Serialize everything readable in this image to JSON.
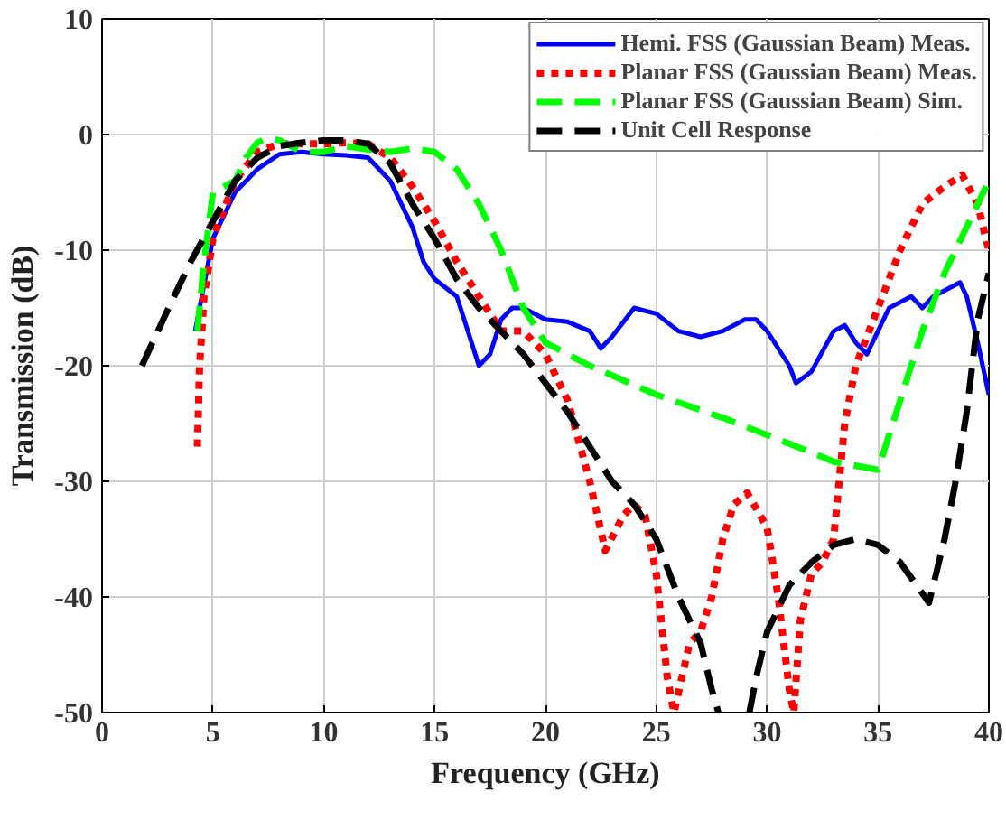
{
  "chart_data": {
    "type": "line",
    "xlabel": "Frequency (GHz)",
    "ylabel": "Transmission (dB)",
    "xlim": [
      0,
      40
    ],
    "ylim": [
      -50,
      10
    ],
    "xticks": [
      0,
      5,
      10,
      15,
      20,
      25,
      30,
      35,
      40
    ],
    "yticks": [
      -50,
      -40,
      -30,
      -20,
      -10,
      0,
      10
    ],
    "grid": true,
    "legend": "top right",
    "series": [
      {
        "name": "Hemi. FSS (Gaussian Beam) Meas.",
        "color": "#0000ff",
        "line_style": "solid",
        "x": [
          4.2,
          5,
          6,
          7,
          8,
          9,
          10,
          11,
          12,
          13,
          14,
          14.5,
          15,
          16,
          16.5,
          17,
          17.5,
          18,
          18.5,
          19,
          20,
          21,
          22,
          22.5,
          23,
          24,
          25,
          26,
          27,
          28,
          29,
          29.5,
          30,
          31,
          31.3,
          32,
          33,
          33.5,
          34,
          34.5,
          35,
          35.5,
          36,
          36.5,
          37,
          37.5,
          38,
          38.7,
          39,
          39.5,
          40
        ],
        "values": [
          -17,
          -9,
          -5,
          -3,
          -1.7,
          -1.5,
          -1.7,
          -1.8,
          -2,
          -4,
          -8,
          -11,
          -12.5,
          -14,
          -17,
          -20,
          -19,
          -16,
          -15,
          -15,
          -16,
          -16.2,
          -17,
          -18.5,
          -17.5,
          -15,
          -15.5,
          -17,
          -17.5,
          -17,
          -16,
          -16,
          -17,
          -20,
          -21.5,
          -20.5,
          -17,
          -16.5,
          -18,
          -19,
          -17,
          -15,
          -14.5,
          -14,
          -15,
          -14,
          -13.5,
          -12.8,
          -14,
          -18,
          -22.5
        ]
      },
      {
        "name": "Planar FSS (Gaussian Beam) Meas.",
        "color": "#ff0000",
        "line_style": "dotted",
        "x": [
          4.3,
          4.4,
          4.6,
          5,
          6,
          7,
          8,
          9,
          10,
          11,
          12,
          13,
          14,
          15,
          16,
          17,
          18,
          19,
          20,
          21,
          22,
          22.7,
          23.5,
          24,
          24.5,
          25,
          25.5,
          25.8,
          26.5,
          27,
          27.5,
          28,
          28.5,
          29.1,
          30,
          30.5,
          31,
          31.2,
          31.5,
          32,
          32.5,
          33,
          33.5,
          34,
          35,
          36,
          37,
          38,
          38.8,
          39.5,
          39.8,
          40
        ],
        "values": [
          -27,
          -20,
          -14,
          -9,
          -4,
          -1.5,
          -0.8,
          -0.8,
          -0.8,
          -0.7,
          -0.8,
          -2,
          -4.5,
          -7.5,
          -11,
          -14,
          -17,
          -17,
          -19,
          -23,
          -30,
          -36,
          -33,
          -32,
          -33,
          -38,
          -47,
          -50,
          -44,
          -43,
          -40,
          -35,
          -32,
          -31,
          -34,
          -40,
          -48,
          -50,
          -42,
          -38,
          -37,
          -35,
          -25,
          -20,
          -15,
          -10,
          -6,
          -4.5,
          -3.5,
          -6,
          -8.5,
          -10
        ]
      },
      {
        "name": "Planar FSS (Gaussian Beam) Sim.",
        "color": "#00ff00",
        "line_style": "dashed",
        "x": [
          4.3,
          4.6,
          5,
          6,
          6.5,
          7,
          7.5,
          8,
          9,
          10,
          11,
          12,
          13,
          14,
          15,
          16,
          17,
          18,
          19,
          20,
          22,
          25,
          28,
          30,
          32,
          33,
          35,
          36,
          37,
          38,
          39,
          40
        ],
        "values": [
          -17,
          -11,
          -5,
          -4,
          -2,
          -0.7,
          -0.3,
          -0.5,
          -1.5,
          -1.5,
          -1,
          -1.3,
          -1.5,
          -1.2,
          -1.5,
          -3,
          -6,
          -10,
          -15,
          -18,
          -20,
          -22.5,
          -24.5,
          -26,
          -27.5,
          -28.3,
          -29,
          -23,
          -17,
          -12,
          -8,
          -4
        ]
      },
      {
        "name": "Unit Cell Response",
        "color": "#000000",
        "line_style": "dashed",
        "x": [
          1.8,
          3,
          4,
          5,
          6,
          7,
          8,
          9,
          10,
          11,
          12,
          13,
          14,
          15,
          16,
          17,
          18,
          19,
          20,
          21,
          22,
          23,
          24,
          25,
          26,
          27,
          27.5,
          27.8,
          28.5,
          29.2,
          29.5,
          30,
          31,
          32,
          33,
          34,
          35,
          36,
          37.3,
          38,
          38.5,
          39,
          39.5,
          40
        ],
        "values": [
          -20,
          -15,
          -11,
          -7.5,
          -4,
          -2,
          -1,
          -0.7,
          -0.5,
          -0.5,
          -0.8,
          -2.5,
          -6,
          -9,
          -12.5,
          -15,
          -17,
          -19,
          -21.5,
          -24,
          -27,
          -30,
          -32,
          -35,
          -40,
          -44,
          -48,
          -50,
          null,
          -50,
          -47,
          -43,
          -39,
          -37,
          -35.5,
          -35,
          -35.5,
          -37,
          -40.5,
          -35,
          -30,
          -24,
          -16,
          -12
        ]
      }
    ]
  }
}
